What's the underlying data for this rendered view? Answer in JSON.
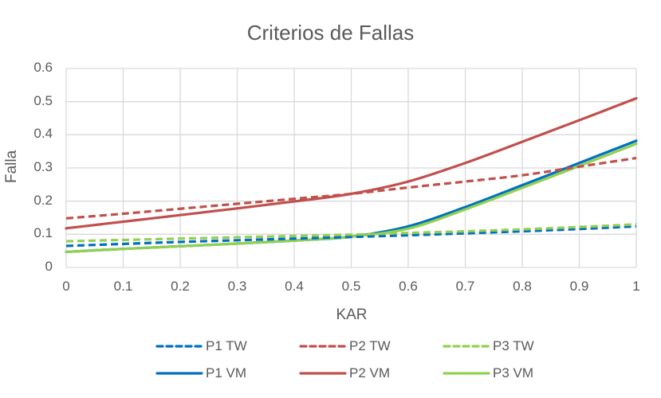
{
  "chart_data": {
    "type": "line",
    "title": "Criterios de Fallas",
    "xlabel": "KAR",
    "ylabel": "Falla",
    "xlim": [
      0,
      1
    ],
    "ylim": [
      0,
      0.6
    ],
    "grid": true,
    "legend_position": "bottom",
    "x": [
      0,
      0.1,
      0.2,
      0.3,
      0.4,
      0.5,
      0.6,
      0.7,
      0.8,
      0.9,
      1
    ],
    "x_ticks": [
      "0",
      "0.1",
      "0.2",
      "0.3",
      "0.4",
      "0.5",
      "0.6",
      "0.7",
      "0.8",
      "0.9",
      "1"
    ],
    "y_ticks": [
      "0",
      "0.1",
      "0.2",
      "0.3",
      "0.4",
      "0.5",
      "0.6"
    ],
    "series": [
      {
        "name": "P1 TW",
        "color": "#0070C0",
        "dash": true,
        "values": [
          0.065,
          0.071,
          0.077,
          0.082,
          0.087,
          0.092,
          0.097,
          0.103,
          0.109,
          0.116,
          0.124
        ]
      },
      {
        "name": "P2 TW",
        "color": "#C0504D",
        "dash": true,
        "values": [
          0.148,
          0.162,
          0.177,
          0.192,
          0.207,
          0.222,
          0.241,
          0.259,
          0.278,
          0.304,
          0.33
        ]
      },
      {
        "name": "P3 TW",
        "color": "#92D050",
        "dash": true,
        "values": [
          0.079,
          0.083,
          0.087,
          0.091,
          0.095,
          0.099,
          0.104,
          0.109,
          0.115,
          0.122,
          0.13
        ]
      },
      {
        "name": "P1 VM",
        "color": "#0070C0",
        "dash": false,
        "values": [
          0.047,
          0.056,
          0.064,
          0.072,
          0.081,
          0.093,
          0.124,
          0.182,
          0.248,
          0.315,
          0.382
        ]
      },
      {
        "name": "P2 VM",
        "color": "#C0504D",
        "dash": false,
        "values": [
          0.118,
          0.138,
          0.158,
          0.178,
          0.199,
          0.222,
          0.259,
          0.315,
          0.379,
          0.444,
          0.51
        ]
      },
      {
        "name": "P3 VM",
        "color": "#92D050",
        "dash": false,
        "values": [
          0.047,
          0.056,
          0.064,
          0.072,
          0.081,
          0.093,
          0.117,
          0.175,
          0.24,
          0.306,
          0.373
        ]
      }
    ]
  }
}
